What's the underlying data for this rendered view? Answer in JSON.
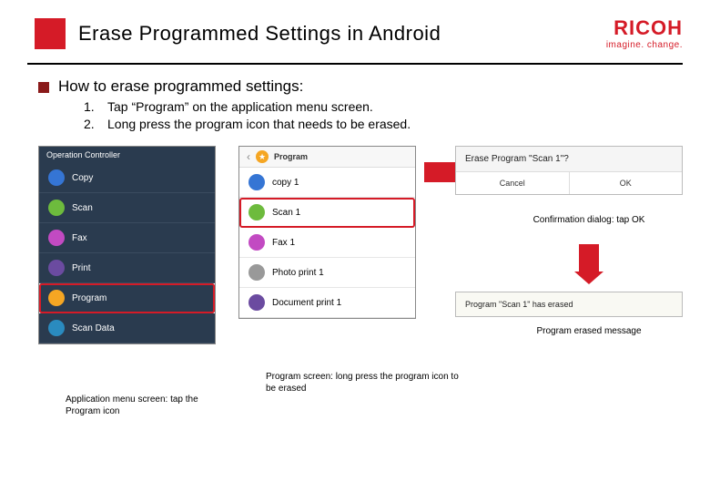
{
  "header": {
    "title": "Erase Programmed Settings in Android",
    "brand_name": "RICOH",
    "brand_tag": "imagine. change.",
    "brand_color": "#d51b27"
  },
  "howto": {
    "heading": "How to erase programmed settings:",
    "steps": [
      {
        "num": "1.",
        "text": "Tap “Program” on the application menu screen."
      },
      {
        "num": "2.",
        "text": "Long press the program icon that needs to be erased."
      }
    ]
  },
  "phone1": {
    "header": "Operation Controller",
    "items": [
      {
        "label": "Copy",
        "color": "#3575d4"
      },
      {
        "label": "Scan",
        "color": "#6dbb3d"
      },
      {
        "label": "Fax",
        "color": "#c24ac2"
      },
      {
        "label": "Print",
        "color": "#6b4ba0"
      },
      {
        "label": "Program",
        "color": "#f5a623",
        "highlight": true
      },
      {
        "label": "Scan Data",
        "color": "#2a8bbf"
      }
    ]
  },
  "phone2": {
    "header": "Program",
    "items": [
      {
        "label": "copy 1",
        "color": "#3575d4"
      },
      {
        "label": "Scan 1",
        "color": "#6dbb3d",
        "highlight": true
      },
      {
        "label": "Fax 1",
        "color": "#c24ac2"
      },
      {
        "label": "Photo print 1",
        "color": "#999999"
      },
      {
        "label": "Document print 1",
        "color": "#6b4ba0"
      }
    ]
  },
  "dialog": {
    "title": "Erase Program \"Scan 1\"?",
    "cancel": "Cancel",
    "ok": "OK"
  },
  "toast": {
    "text": "Program \"Scan 1\" has erased"
  },
  "captions": {
    "c1": "Application menu screen: tap the Program icon",
    "c2": "Program screen: long press the program icon to be erased",
    "c3": "Confirmation dialog: tap OK",
    "c4": "Program erased message"
  },
  "colors": {
    "accent": "#d51b27",
    "dark_bullet": "#8a1a1a",
    "phone_dark_bg": "#2a3b4f"
  }
}
